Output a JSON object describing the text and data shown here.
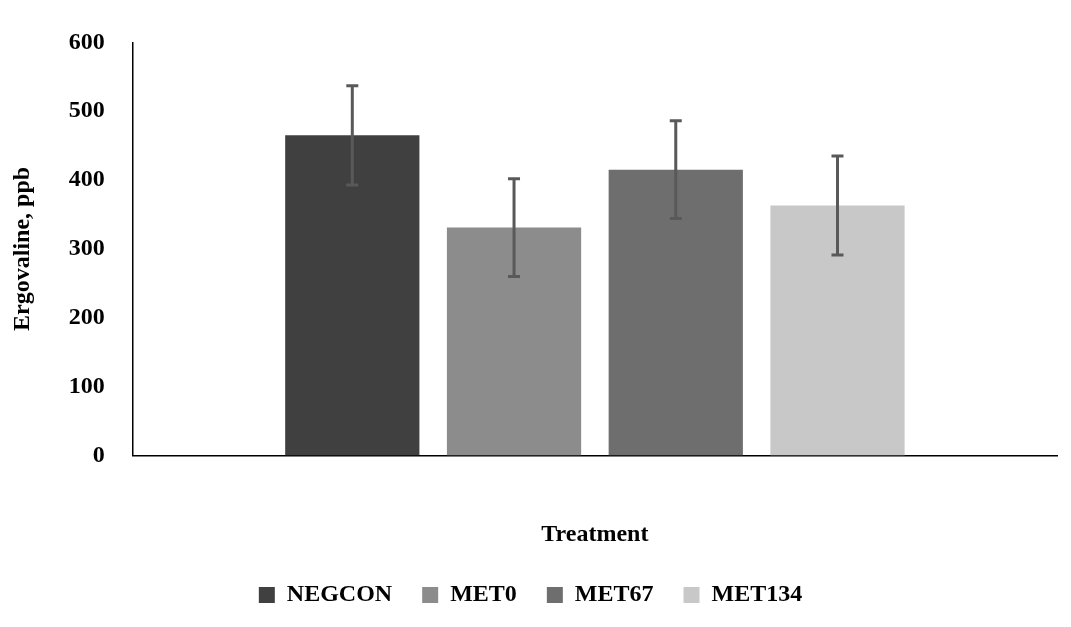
{
  "chart_data": {
    "type": "bar",
    "xlabel": "Treatment",
    "ylabel": "Ergovaline, ppb",
    "categories": [
      null
    ],
    "series": [
      {
        "name": "NEGCON",
        "color": "#404040",
        "values": [
          465
        ],
        "errors": [
          72
        ]
      },
      {
        "name": "MET0",
        "color": "#8c8c8c",
        "values": [
          331
        ],
        "errors": [
          71
        ]
      },
      {
        "name": "MET67",
        "color": "#6e6e6e",
        "values": [
          415
        ],
        "errors": [
          71
        ]
      },
      {
        "name": "MET134",
        "color": "#c8c8c8",
        "values": [
          363
        ],
        "errors": [
          72
        ]
      }
    ],
    "ylim": [
      0,
      600
    ],
    "yticks": [
      0,
      100,
      200,
      300,
      400,
      500,
      600
    ],
    "grid": false,
    "legend": "bottom"
  }
}
